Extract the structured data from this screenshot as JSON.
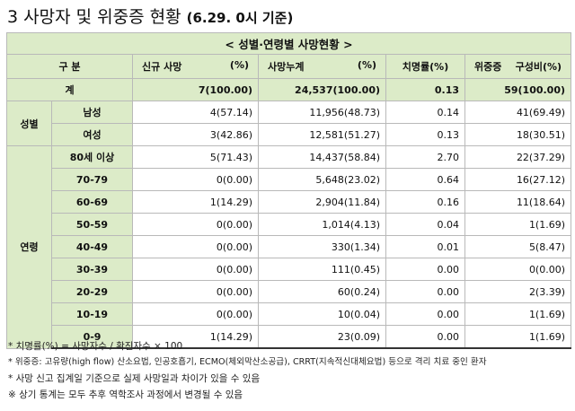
{
  "title": {
    "main": "3 사망자 및 위중증 현황",
    "suffix": "(6.29. 0시 기준)"
  },
  "table": {
    "caption": "< 성별·연령별 사망현황 >",
    "headers": {
      "group": "구 분",
      "new_deaths": "신규 사망",
      "new_deaths_unit": "(%)",
      "cum_deaths": "사망누계",
      "cum_deaths_unit": "(%)",
      "cfr": "치명률(%)",
      "severe": "위중증",
      "severe_ratio": "구성비(%)"
    },
    "total": {
      "label": "계",
      "new_deaths": "7(100.00)",
      "cum_deaths": "24,537(100.00)",
      "cfr": "0.13",
      "severe": "59(100.00)"
    },
    "sex_label": "성별",
    "sex_rows": [
      {
        "label": "남성",
        "new_deaths": "4(57.14)",
        "cum_deaths": "11,956(48.73)",
        "cfr": "0.14",
        "severe": "41(69.49)"
      },
      {
        "label": "여성",
        "new_deaths": "3(42.86)",
        "cum_deaths": "12,581(51.27)",
        "cfr": "0.13",
        "severe": "18(30.51)"
      }
    ],
    "age_label": "연령",
    "age_rows": [
      {
        "label": "80세 이상",
        "new_deaths": "5(71.43)",
        "cum_deaths": "14,437(58.84)",
        "cfr": "2.70",
        "severe": "22(37.29)"
      },
      {
        "label": "70-79",
        "new_deaths": "0(0.00)",
        "cum_deaths": "5,648(23.02)",
        "cfr": "0.64",
        "severe": "16(27.12)"
      },
      {
        "label": "60-69",
        "new_deaths": "1(14.29)",
        "cum_deaths": "2,904(11.84)",
        "cfr": "0.16",
        "severe": "11(18.64)"
      },
      {
        "label": "50-59",
        "new_deaths": "0(0.00)",
        "cum_deaths": "1,014(4.13)",
        "cfr": "0.04",
        "severe": "1(1.69)"
      },
      {
        "label": "40-49",
        "new_deaths": "0(0.00)",
        "cum_deaths": "330(1.34)",
        "cfr": "0.01",
        "severe": "5(8.47)"
      },
      {
        "label": "30-39",
        "new_deaths": "0(0.00)",
        "cum_deaths": "111(0.45)",
        "cfr": "0.00",
        "severe": "0(0.00)"
      },
      {
        "label": "20-29",
        "new_deaths": "0(0.00)",
        "cum_deaths": "60(0.24)",
        "cfr": "0.00",
        "severe": "2(3.39)"
      },
      {
        "label": "10-19",
        "new_deaths": "0(0.00)",
        "cum_deaths": "10(0.04)",
        "cfr": "0.00",
        "severe": "1(1.69)"
      },
      {
        "label": "0-9",
        "new_deaths": "1(14.29)",
        "cum_deaths": "23(0.09)",
        "cfr": "0.00",
        "severe": "1(1.69)"
      }
    ]
  },
  "notes": [
    "* 치명률(%) = 사망자수 / 확진자수 × 100",
    "* 위중증: 고유량(high flow) 산소요법, 인공호흡기, ECMO(체외막산소공급), CRRT(지속적신대체요법) 등으로 격리 치료 중인 환자",
    "* 사망 신고 집계일 기준으로 실제 사망일과 차이가 있을 수 있음",
    "※ 상기 통계는 모두 추후 역학조사 과정에서 변경될 수 있음"
  ]
}
